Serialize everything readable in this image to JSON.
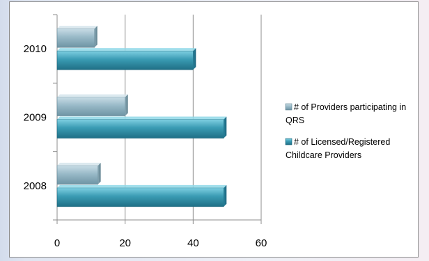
{
  "chart_data": {
    "type": "bar",
    "orientation": "horizontal",
    "categories": [
      "2008",
      "2009",
      "2010"
    ],
    "series": [
      {
        "name": "# of Providers participating in QRS",
        "values": [
          12,
          20,
          11
        ],
        "color": "#8fb1bf"
      },
      {
        "name": "# of Licensed/Registered Childcare Providers",
        "values": [
          49,
          49,
          40
        ],
        "color": "#3a9bb3"
      }
    ],
    "xlim": [
      0,
      60
    ],
    "x_ticks": [
      "0",
      "20",
      "40",
      "60"
    ],
    "grid": true,
    "legend_position": "right",
    "legend": {
      "items": [
        {
          "lines": [
            "# of Providers participating in",
            "QRS"
          ]
        },
        {
          "lines": [
            "# of Licensed/Registered",
            "Childcare Providers"
          ]
        }
      ]
    }
  }
}
